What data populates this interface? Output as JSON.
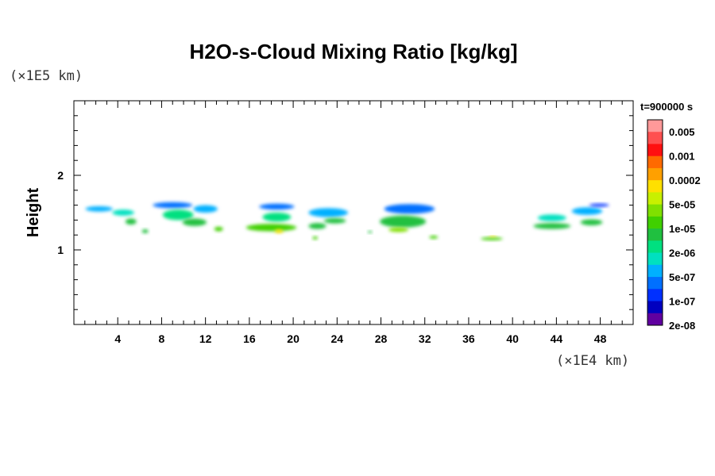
{
  "chart_data": {
    "type": "heatmap",
    "title": "H2O-s-Cloud Mixing Ratio [kg/kg]",
    "ylabel": "Height",
    "x_unit": "(×1E4 km)",
    "y_unit": "(×1E5 km)",
    "xlim": [
      0,
      51
    ],
    "ylim": [
      0,
      3
    ],
    "x_ticks": [
      4,
      8,
      12,
      16,
      20,
      24,
      28,
      32,
      36,
      40,
      44,
      48
    ],
    "x_tick_labels": [
      "4",
      "8",
      "12",
      "16",
      "20",
      "24",
      "28",
      "32",
      "36",
      "40",
      "44",
      "48"
    ],
    "y_ticks": [
      1,
      2
    ],
    "y_tick_labels": [
      "1",
      "2"
    ],
    "time_label": "t=900000 s",
    "colorbar": {
      "labels": [
        "0.005",
        "0.001",
        "0.0002",
        "5e-05",
        "1e-05",
        "2e-06",
        "5e-07",
        "1e-07",
        "2e-08"
      ],
      "colors": [
        "#ff9999",
        "#ff5050",
        "#ff1010",
        "#ff6a00",
        "#ffa000",
        "#ffe000",
        "#c8f000",
        "#80e000",
        "#40d000",
        "#20c040",
        "#00e080",
        "#00e0c0",
        "#00b0ff",
        "#0070ff",
        "#0030ff",
        "#0000c0",
        "#6000a0"
      ]
    },
    "clouds": [
      {
        "x": 2.3,
        "y": 1.55,
        "w": 2.5,
        "h": 0.07,
        "level": 4
      },
      {
        "x": 4.5,
        "y": 1.5,
        "w": 2.0,
        "h": 0.08,
        "level": 5
      },
      {
        "x": 5.2,
        "y": 1.38,
        "w": 1.0,
        "h": 0.08,
        "level": 7
      },
      {
        "x": 6.5,
        "y": 1.25,
        "w": 0.6,
        "h": 0.05,
        "level": 7
      },
      {
        "x": 9.0,
        "y": 1.6,
        "w": 3.6,
        "h": 0.08,
        "level": 3
      },
      {
        "x": 9.5,
        "y": 1.47,
        "w": 2.8,
        "h": 0.14,
        "level": 6
      },
      {
        "x": 11.0,
        "y": 1.37,
        "w": 2.2,
        "h": 0.1,
        "level": 7
      },
      {
        "x": 12.0,
        "y": 1.55,
        "w": 2.2,
        "h": 0.1,
        "level": 4
      },
      {
        "x": 13.2,
        "y": 1.28,
        "w": 0.8,
        "h": 0.06,
        "level": 8
      },
      {
        "x": 18.5,
        "y": 1.58,
        "w": 3.2,
        "h": 0.08,
        "level": 3
      },
      {
        "x": 18.5,
        "y": 1.44,
        "w": 2.6,
        "h": 0.12,
        "level": 6
      },
      {
        "x": 18.0,
        "y": 1.3,
        "w": 4.6,
        "h": 0.1,
        "level": 8
      },
      {
        "x": 18.7,
        "y": 1.25,
        "w": 0.8,
        "h": 0.05,
        "level": 11
      },
      {
        "x": 22.2,
        "y": 1.32,
        "w": 1.6,
        "h": 0.08,
        "level": 7
      },
      {
        "x": 22.0,
        "y": 1.16,
        "w": 0.5,
        "h": 0.04,
        "level": 8
      },
      {
        "x": 23.2,
        "y": 1.5,
        "w": 3.6,
        "h": 0.12,
        "level": 4
      },
      {
        "x": 23.8,
        "y": 1.39,
        "w": 2.0,
        "h": 0.07,
        "level": 7
      },
      {
        "x": 27.0,
        "y": 1.24,
        "w": 0.4,
        "h": 0.03,
        "level": 7
      },
      {
        "x": 30.6,
        "y": 1.55,
        "w": 4.6,
        "h": 0.13,
        "level": 3
      },
      {
        "x": 30.0,
        "y": 1.38,
        "w": 4.2,
        "h": 0.16,
        "level": 7
      },
      {
        "x": 29.6,
        "y": 1.27,
        "w": 1.8,
        "h": 0.06,
        "level": 9
      },
      {
        "x": 32.8,
        "y": 1.17,
        "w": 0.8,
        "h": 0.04,
        "level": 8
      },
      {
        "x": 38.1,
        "y": 1.15,
        "w": 2.0,
        "h": 0.04,
        "level": 8
      },
      {
        "x": 38.2,
        "y": 1.18,
        "w": 0.7,
        "h": 0.02,
        "level": 11
      },
      {
        "x": 43.6,
        "y": 1.43,
        "w": 2.6,
        "h": 0.09,
        "level": 5
      },
      {
        "x": 43.6,
        "y": 1.32,
        "w": 3.4,
        "h": 0.08,
        "level": 7
      },
      {
        "x": 46.8,
        "y": 1.52,
        "w": 2.8,
        "h": 0.1,
        "level": 4
      },
      {
        "x": 47.2,
        "y": 1.37,
        "w": 2.0,
        "h": 0.08,
        "level": 7
      },
      {
        "x": 47.9,
        "y": 1.6,
        "w": 1.8,
        "h": 0.04,
        "level": 2
      }
    ]
  }
}
